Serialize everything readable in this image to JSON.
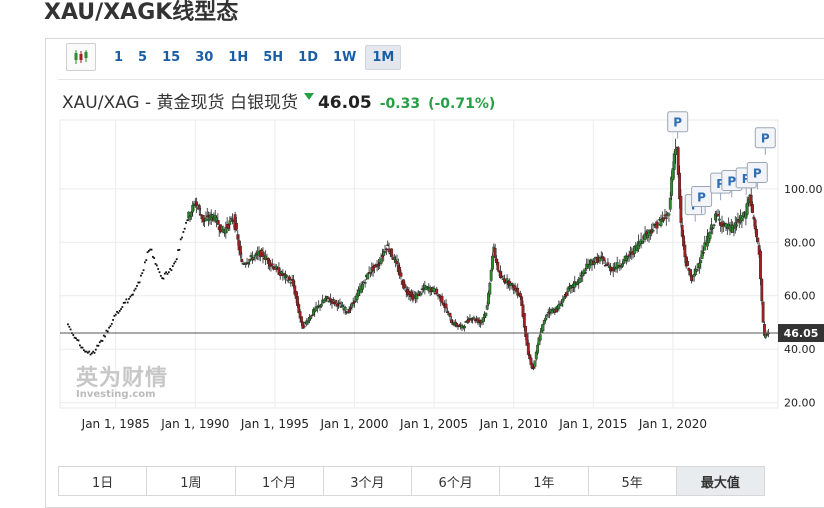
{
  "page": {
    "title": "XAU/XAGK线型态"
  },
  "toolbar": {
    "candle_icon": "candlestick-icon",
    "timeframes": [
      "1",
      "5",
      "15",
      "30",
      "1H",
      "5H",
      "1D",
      "1W",
      "1M"
    ],
    "active_timeframe": "1M"
  },
  "quote": {
    "instrument": "XAU/XAG - 黄金现货 白银现货",
    "last": "46.05",
    "change": "-0.33",
    "change_pct": "(-0.71%)",
    "direction_icon": "triangle-down-icon",
    "change_color": "#26a044"
  },
  "watermark": {
    "primary": "英为财情",
    "secondary": "Investing.com"
  },
  "ranges": {
    "items": [
      "1日",
      "1周",
      "1个月",
      "3个月",
      "6个月",
      "1年",
      "5年",
      "最大值"
    ],
    "active": "最大值"
  },
  "chart_data": {
    "type": "candlestick",
    "title": "",
    "xlabel": "",
    "ylabel": "",
    "x_ticks": [
      "Jan 1, 1985",
      "Jan 1, 1990",
      "Jan 1, 1995",
      "Jan 1, 2000",
      "Jan 1, 2005",
      "Jan 1, 2010",
      "Jan 1, 2015",
      "Jan 1, 2020"
    ],
    "y_ticks": [
      20,
      40,
      60,
      80,
      100
    ],
    "ylim": [
      18,
      125
    ],
    "xlim": [
      1981.5,
      2026.6
    ],
    "current_price": {
      "value": 46.05,
      "label": "46.05"
    },
    "up_color": "#2e8b2e",
    "down_color": "#a32020",
    "series_points": [
      [
        1982.0,
        50
      ],
      [
        1982.5,
        45
      ],
      [
        1983.0,
        40
      ],
      [
        1983.6,
        38
      ],
      [
        1984.2,
        43
      ],
      [
        1985.0,
        52
      ],
      [
        1985.8,
        58
      ],
      [
        1986.5,
        64
      ],
      [
        1987.2,
        78
      ],
      [
        1988.0,
        66
      ],
      [
        1988.8,
        72
      ],
      [
        1989.5,
        88
      ],
      [
        1990.1,
        95
      ],
      [
        1990.6,
        88
      ],
      [
        1991.2,
        90
      ],
      [
        1991.8,
        84
      ],
      [
        1992.5,
        89
      ],
      [
        1993.0,
        72
      ],
      [
        1993.6,
        74
      ],
      [
        1994.2,
        76
      ],
      [
        1994.8,
        72
      ],
      [
        1995.5,
        68
      ],
      [
        1996.2,
        65
      ],
      [
        1996.8,
        48
      ],
      [
        1997.5,
        54
      ],
      [
        1998.3,
        59
      ],
      [
        1999.0,
        57
      ],
      [
        1999.7,
        54
      ],
      [
        2000.4,
        62
      ],
      [
        2001.0,
        69
      ],
      [
        2001.6,
        72
      ],
      [
        2002.1,
        79
      ],
      [
        2002.7,
        72
      ],
      [
        2003.2,
        63
      ],
      [
        2003.8,
        59
      ],
      [
        2004.5,
        63
      ],
      [
        2005.1,
        62
      ],
      [
        2005.6,
        58
      ],
      [
        2006.2,
        50
      ],
      [
        2006.8,
        48
      ],
      [
        2007.4,
        52
      ],
      [
        2008.0,
        50
      ],
      [
        2008.4,
        55
      ],
      [
        2008.8,
        78
      ],
      [
        2009.2,
        67
      ],
      [
        2009.8,
        65
      ],
      [
        2010.5,
        60
      ],
      [
        2011.0,
        38
      ],
      [
        2011.3,
        32
      ],
      [
        2011.7,
        45
      ],
      [
        2012.2,
        54
      ],
      [
        2012.8,
        55
      ],
      [
        2013.5,
        62
      ],
      [
        2014.2,
        66
      ],
      [
        2014.8,
        72
      ],
      [
        2015.5,
        74
      ],
      [
        2016.2,
        70
      ],
      [
        2016.8,
        72
      ],
      [
        2017.5,
        76
      ],
      [
        2018.2,
        82
      ],
      [
        2018.8,
        85
      ],
      [
        2019.3,
        88
      ],
      [
        2019.8,
        90
      ],
      [
        2020.1,
        110
      ],
      [
        2020.3,
        118
      ],
      [
        2020.6,
        85
      ],
      [
        2020.9,
        72
      ],
      [
        2021.3,
        66
      ],
      [
        2021.8,
        74
      ],
      [
        2022.3,
        82
      ],
      [
        2022.8,
        90
      ],
      [
        2023.3,
        86
      ],
      [
        2023.8,
        85
      ],
      [
        2024.2,
        88
      ],
      [
        2024.6,
        90
      ],
      [
        2024.9,
        98
      ],
      [
        2025.2,
        86
      ],
      [
        2025.5,
        76
      ],
      [
        2025.8,
        44
      ],
      [
        2026.0,
        46.05
      ]
    ],
    "early_dots_until": 1989.5,
    "markers": [
      {
        "label": "P",
        "x": 2020.3,
        "y": 118
      },
      {
        "label": "P",
        "x": 2021.4,
        "y": 87
      },
      {
        "label": "P",
        "x": 2021.8,
        "y": 90
      },
      {
        "label": "P",
        "x": 2023.0,
        "y": 95
      },
      {
        "label": "P",
        "x": 2023.7,
        "y": 96
      },
      {
        "label": "P",
        "x": 2024.6,
        "y": 97
      },
      {
        "label": "P",
        "x": 2025.3,
        "y": 99
      },
      {
        "label": "P",
        "x": 2025.8,
        "y": 112
      }
    ]
  }
}
